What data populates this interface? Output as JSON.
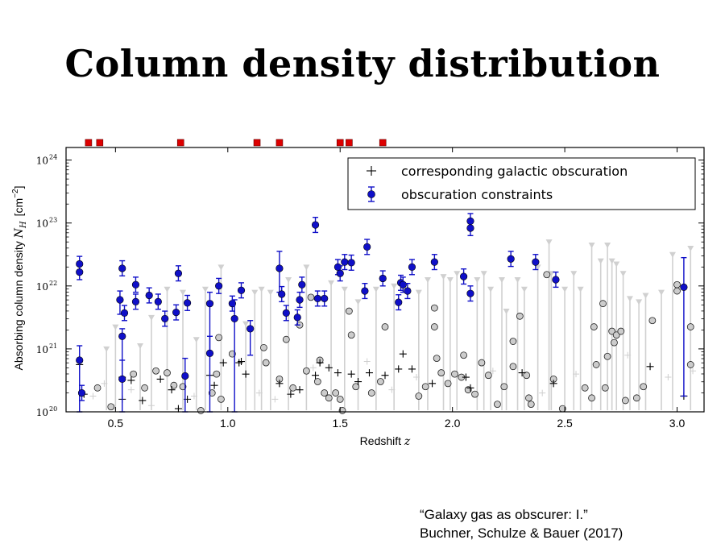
{
  "slide": {
    "title": "Column density distribution",
    "citation_line1": "“Galaxy gas as obscurer: I.”",
    "citation_line2": "Buchner, Schulze & Bauer (2017)"
  },
  "chart_data": {
    "type": "scatter",
    "xlabel": "Redshift",
    "xlabel_symbol": "z",
    "ylabel": "Absorbing column density",
    "ylabel_symbol": "N",
    "ylabel_sub": "H",
    "ylabel_unit": "[cm",
    "ylabel_unit_exp": "−2",
    "ylabel_unit_close": "]",
    "y_scale": "log",
    "xlim": [
      0.28,
      3.12
    ],
    "ylim_log10": [
      20,
      24.2
    ],
    "x_ticks": [
      {
        "v": 0.5,
        "t": "0.5"
      },
      {
        "v": 1.0,
        "t": "1.0"
      },
      {
        "v": 1.5,
        "t": "1.5"
      },
      {
        "v": 2.0,
        "t": "2.0"
      },
      {
        "v": 2.5,
        "t": "2.5"
      },
      {
        "v": 3.0,
        "t": "3.0"
      }
    ],
    "y_ticks": [
      {
        "v": 20,
        "t": "10",
        "e": "20"
      },
      {
        "v": 21,
        "t": "10",
        "e": "21"
      },
      {
        "v": 22,
        "t": "10",
        "e": "22"
      },
      {
        "v": 23,
        "t": "10",
        "e": "23"
      },
      {
        "v": 24,
        "t": "10",
        "e": "24"
      }
    ],
    "legend_position": "top-right",
    "legend": [
      {
        "label": "corresponding galactic obscuration",
        "marker": "plus",
        "color": "#000000"
      },
      {
        "label": "obscuration constraints",
        "marker": "circle-errorbar",
        "color": "#0000cc"
      }
    ],
    "colors": {
      "constraints": "#0f0fc8",
      "galactic": "#000000",
      "upper_limits": "#d0d0d0",
      "open_points": "#cccccc",
      "top_markers": "#dd0000"
    },
    "top_markers": [
      0.38,
      0.43,
      0.79,
      1.13,
      1.23,
      1.5,
      1.54,
      1.69
    ],
    "constraints": [
      {
        "x": 0.34,
        "y": 22.35
      },
      {
        "x": 0.34,
        "y": 22.22
      },
      {
        "x": 0.34,
        "y": 20.82,
        "lo": 20.0,
        "hi": 21.05
      },
      {
        "x": 0.35,
        "y": 20.3
      },
      {
        "x": 0.52,
        "y": 21.78,
        "lo": 21.55,
        "hi": 21.92
      },
      {
        "x": 0.53,
        "y": 22.28
      },
      {
        "x": 0.53,
        "y": 21.2,
        "lo": 20.5,
        "hi": 21.32
      },
      {
        "x": 0.53,
        "y": 20.52,
        "lo": 20.0,
        "hi": 20.82
      },
      {
        "x": 0.54,
        "y": 21.57
      },
      {
        "x": 0.59,
        "y": 22.02
      },
      {
        "x": 0.59,
        "y": 21.75
      },
      {
        "x": 0.65,
        "y": 21.85
      },
      {
        "x": 0.69,
        "y": 21.75
      },
      {
        "x": 0.72,
        "y": 21.48
      },
      {
        "x": 0.77,
        "y": 21.58
      },
      {
        "x": 0.78,
        "y": 22.2
      },
      {
        "x": 0.82,
        "y": 21.73
      },
      {
        "x": 0.81,
        "y": 20.57,
        "lo": 20.0,
        "hi": 20.85
      },
      {
        "x": 0.92,
        "y": 21.72,
        "lo": 20.9,
        "hi": 21.9
      },
      {
        "x": 0.92,
        "y": 20.93,
        "lo": 20.0,
        "hi": 21.2
      },
      {
        "x": 0.96,
        "y": 22.0
      },
      {
        "x": 1.02,
        "y": 21.72
      },
      {
        "x": 1.03,
        "y": 21.48,
        "lo": 20.0,
        "hi": 21.78
      },
      {
        "x": 1.06,
        "y": 21.93
      },
      {
        "x": 1.1,
        "y": 21.32,
        "lo": 20.9,
        "hi": 21.45
      },
      {
        "x": 1.23,
        "y": 22.28,
        "lo": 21.9,
        "hi": 22.55
      },
      {
        "x": 1.24,
        "y": 21.87
      },
      {
        "x": 1.26,
        "y": 21.57
      },
      {
        "x": 1.31,
        "y": 21.5
      },
      {
        "x": 1.32,
        "y": 21.78
      },
      {
        "x": 1.33,
        "y": 22.02
      },
      {
        "x": 1.39,
        "y": 22.97
      },
      {
        "x": 1.4,
        "y": 21.8
      },
      {
        "x": 1.43,
        "y": 21.8
      },
      {
        "x": 1.49,
        "y": 22.3
      },
      {
        "x": 1.5,
        "y": 22.2
      },
      {
        "x": 1.52,
        "y": 22.38
      },
      {
        "x": 1.55,
        "y": 22.37
      },
      {
        "x": 1.62,
        "y": 22.62
      },
      {
        "x": 1.61,
        "y": 21.92
      },
      {
        "x": 1.69,
        "y": 22.12
      },
      {
        "x": 1.76,
        "y": 21.74
      },
      {
        "x": 1.77,
        "y": 22.05
      },
      {
        "x": 1.78,
        "y": 22.02
      },
      {
        "x": 1.8,
        "y": 21.92
      },
      {
        "x": 1.82,
        "y": 22.3
      },
      {
        "x": 1.92,
        "y": 22.38
      },
      {
        "x": 2.05,
        "y": 22.15
      },
      {
        "x": 2.08,
        "y": 23.03
      },
      {
        "x": 2.08,
        "y": 22.92
      },
      {
        "x": 2.08,
        "y": 21.88
      },
      {
        "x": 2.26,
        "y": 22.43
      },
      {
        "x": 2.37,
        "y": 22.38
      },
      {
        "x": 2.46,
        "y": 22.1
      },
      {
        "x": 3.03,
        "y": 21.98,
        "lo": 20.25,
        "hi": 22.45
      }
    ],
    "galactic_points": [
      {
        "x": 0.34,
        "y": 20.75
      },
      {
        "x": 0.36,
        "y": 20.28
      },
      {
        "x": 0.53,
        "y": 20.55
      },
      {
        "x": 0.53,
        "y": 20.2
      },
      {
        "x": 0.57,
        "y": 20.5
      },
      {
        "x": 0.62,
        "y": 20.18
      },
      {
        "x": 0.7,
        "y": 20.52
      },
      {
        "x": 0.75,
        "y": 20.35
      },
      {
        "x": 0.78,
        "y": 20.05
      },
      {
        "x": 0.82,
        "y": 20.2
      },
      {
        "x": 0.92,
        "y": 20.58
      },
      {
        "x": 0.94,
        "y": 20.42
      },
      {
        "x": 0.98,
        "y": 20.78
      },
      {
        "x": 1.05,
        "y": 20.78
      },
      {
        "x": 1.06,
        "y": 20.8
      },
      {
        "x": 1.08,
        "y": 20.6
      },
      {
        "x": 1.23,
        "y": 20.45
      },
      {
        "x": 1.28,
        "y": 20.28
      },
      {
        "x": 1.32,
        "y": 20.35
      },
      {
        "x": 1.39,
        "y": 20.58
      },
      {
        "x": 1.41,
        "y": 20.78
      },
      {
        "x": 1.45,
        "y": 20.7
      },
      {
        "x": 1.49,
        "y": 20.62
      },
      {
        "x": 1.55,
        "y": 20.6
      },
      {
        "x": 1.58,
        "y": 20.48
      },
      {
        "x": 1.63,
        "y": 20.62
      },
      {
        "x": 1.7,
        "y": 20.58
      },
      {
        "x": 1.76,
        "y": 20.68
      },
      {
        "x": 1.78,
        "y": 20.92
      },
      {
        "x": 1.82,
        "y": 20.68
      },
      {
        "x": 1.91,
        "y": 20.45
      },
      {
        "x": 2.06,
        "y": 20.55
      },
      {
        "x": 2.08,
        "y": 20.38
      },
      {
        "x": 2.31,
        "y": 20.62
      },
      {
        "x": 2.45,
        "y": 20.45
      },
      {
        "x": 2.88,
        "y": 20.72
      },
      {
        "x": 3.03,
        "y": 20.25
      }
    ],
    "open_points": [
      {
        "x": 0.42,
        "y": 20.38
      },
      {
        "x": 0.48,
        "y": 20.08
      },
      {
        "x": 0.58,
        "y": 20.6
      },
      {
        "x": 0.63,
        "y": 20.38
      },
      {
        "x": 0.68,
        "y": 20.65
      },
      {
        "x": 0.73,
        "y": 20.62
      },
      {
        "x": 0.76,
        "y": 20.42
      },
      {
        "x": 0.8,
        "y": 20.4
      },
      {
        "x": 0.88,
        "y": 20.02
      },
      {
        "x": 0.93,
        "y": 20.3
      },
      {
        "x": 0.95,
        "y": 20.6
      },
      {
        "x": 0.97,
        "y": 20.2
      },
      {
        "x": 0.96,
        "y": 21.18
      },
      {
        "x": 1.02,
        "y": 20.92
      },
      {
        "x": 1.16,
        "y": 21.02
      },
      {
        "x": 1.17,
        "y": 20.78
      },
      {
        "x": 1.23,
        "y": 20.52
      },
      {
        "x": 1.26,
        "y": 21.15
      },
      {
        "x": 1.29,
        "y": 20.38
      },
      {
        "x": 1.32,
        "y": 21.38
      },
      {
        "x": 1.35,
        "y": 20.65
      },
      {
        "x": 1.37,
        "y": 21.82
      },
      {
        "x": 1.4,
        "y": 20.48
      },
      {
        "x": 1.41,
        "y": 20.82
      },
      {
        "x": 1.43,
        "y": 20.3
      },
      {
        "x": 1.45,
        "y": 20.22
      },
      {
        "x": 1.48,
        "y": 20.3
      },
      {
        "x": 1.5,
        "y": 20.2
      },
      {
        "x": 1.51,
        "y": 20.02
      },
      {
        "x": 1.54,
        "y": 21.6
      },
      {
        "x": 1.55,
        "y": 21.22
      },
      {
        "x": 1.57,
        "y": 20.4
      },
      {
        "x": 1.64,
        "y": 20.3
      },
      {
        "x": 1.68,
        "y": 20.48
      },
      {
        "x": 1.7,
        "y": 21.35
      },
      {
        "x": 1.85,
        "y": 20.25
      },
      {
        "x": 1.88,
        "y": 20.4
      },
      {
        "x": 1.92,
        "y": 21.35
      },
      {
        "x": 1.92,
        "y": 21.65
      },
      {
        "x": 1.93,
        "y": 20.85
      },
      {
        "x": 1.95,
        "y": 20.62
      },
      {
        "x": 1.98,
        "y": 20.45
      },
      {
        "x": 2.01,
        "y": 20.6
      },
      {
        "x": 2.04,
        "y": 20.55
      },
      {
        "x": 2.05,
        "y": 20.9
      },
      {
        "x": 2.07,
        "y": 20.35
      },
      {
        "x": 2.1,
        "y": 20.28
      },
      {
        "x": 2.13,
        "y": 20.78
      },
      {
        "x": 2.16,
        "y": 20.58
      },
      {
        "x": 2.2,
        "y": 20.12
      },
      {
        "x": 2.23,
        "y": 20.4
      },
      {
        "x": 2.27,
        "y": 21.12
      },
      {
        "x": 2.27,
        "y": 20.72
      },
      {
        "x": 2.3,
        "y": 21.52
      },
      {
        "x": 2.33,
        "y": 20.58
      },
      {
        "x": 2.34,
        "y": 20.22
      },
      {
        "x": 2.35,
        "y": 20.12
      },
      {
        "x": 2.42,
        "y": 22.18
      },
      {
        "x": 2.45,
        "y": 20.52
      },
      {
        "x": 2.49,
        "y": 20.05
      },
      {
        "x": 2.59,
        "y": 20.38
      },
      {
        "x": 2.62,
        "y": 20.22
      },
      {
        "x": 2.63,
        "y": 21.35
      },
      {
        "x": 2.64,
        "y": 20.75
      },
      {
        "x": 2.67,
        "y": 21.72
      },
      {
        "x": 2.68,
        "y": 20.38
      },
      {
        "x": 2.69,
        "y": 20.88
      },
      {
        "x": 2.71,
        "y": 21.28
      },
      {
        "x": 2.72,
        "y": 21.1
      },
      {
        "x": 2.73,
        "y": 21.22
      },
      {
        "x": 2.75,
        "y": 21.28
      },
      {
        "x": 2.77,
        "y": 20.18
      },
      {
        "x": 2.82,
        "y": 20.22
      },
      {
        "x": 2.85,
        "y": 20.4
      },
      {
        "x": 2.89,
        "y": 21.45
      },
      {
        "x": 3.0,
        "y": 22.02
      },
      {
        "x": 3.0,
        "y": 21.92
      },
      {
        "x": 3.06,
        "y": 21.35
      },
      {
        "x": 3.06,
        "y": 20.75
      }
    ],
    "upper_limits": [
      {
        "x": 0.46,
        "y": 21.0
      },
      {
        "x": 0.5,
        "y": 21.35
      },
      {
        "x": 0.61,
        "y": 21.05
      },
      {
        "x": 0.66,
        "y": 21.5
      },
      {
        "x": 0.73,
        "y": 21.95
      },
      {
        "x": 0.8,
        "y": 21.9
      },
      {
        "x": 0.86,
        "y": 21.15
      },
      {
        "x": 0.9,
        "y": 21.95
      },
      {
        "x": 0.97,
        "y": 22.3
      },
      {
        "x": 1.08,
        "y": 21.4
      },
      {
        "x": 1.12,
        "y": 21.9
      },
      {
        "x": 1.15,
        "y": 21.95
      },
      {
        "x": 1.19,
        "y": 21.9
      },
      {
        "x": 1.27,
        "y": 22.1
      },
      {
        "x": 1.35,
        "y": 22.3
      },
      {
        "x": 1.46,
        "y": 22.05
      },
      {
        "x": 1.52,
        "y": 21.95
      },
      {
        "x": 1.58,
        "y": 21.75
      },
      {
        "x": 1.66,
        "y": 21.95
      },
      {
        "x": 1.74,
        "y": 22.0
      },
      {
        "x": 1.85,
        "y": 21.9
      },
      {
        "x": 1.89,
        "y": 22.1
      },
      {
        "x": 1.96,
        "y": 22.15
      },
      {
        "x": 1.99,
        "y": 22.1
      },
      {
        "x": 2.02,
        "y": 22.2
      },
      {
        "x": 2.11,
        "y": 22.1
      },
      {
        "x": 2.14,
        "y": 22.2
      },
      {
        "x": 2.17,
        "y": 21.95
      },
      {
        "x": 2.22,
        "y": 22.1
      },
      {
        "x": 2.24,
        "y": 21.6
      },
      {
        "x": 2.29,
        "y": 22.1
      },
      {
        "x": 2.32,
        "y": 21.95
      },
      {
        "x": 2.38,
        "y": 22.3
      },
      {
        "x": 2.43,
        "y": 22.7
      },
      {
        "x": 2.44,
        "y": 22.2
      },
      {
        "x": 2.5,
        "y": 21.95
      },
      {
        "x": 2.54,
        "y": 22.2
      },
      {
        "x": 2.57,
        "y": 21.95
      },
      {
        "x": 2.62,
        "y": 22.65
      },
      {
        "x": 2.66,
        "y": 22.4
      },
      {
        "x": 2.69,
        "y": 22.65
      },
      {
        "x": 2.71,
        "y": 22.4
      },
      {
        "x": 2.73,
        "y": 22.35
      },
      {
        "x": 2.76,
        "y": 22.2
      },
      {
        "x": 2.79,
        "y": 21.8
      },
      {
        "x": 2.83,
        "y": 21.75
      },
      {
        "x": 2.86,
        "y": 21.85
      },
      {
        "x": 2.93,
        "y": 21.9
      },
      {
        "x": 2.98,
        "y": 22.5
      },
      {
        "x": 3.06,
        "y": 22.6
      }
    ],
    "faint_points": [
      {
        "x": 0.4,
        "y": 20.25
      },
      {
        "x": 0.45,
        "y": 20.45
      },
      {
        "x": 0.57,
        "y": 20.35
      },
      {
        "x": 0.66,
        "y": 20.1
      },
      {
        "x": 0.85,
        "y": 20.25
      },
      {
        "x": 1.14,
        "y": 20.3
      },
      {
        "x": 1.21,
        "y": 20.2
      },
      {
        "x": 1.38,
        "y": 20.7
      },
      {
        "x": 1.62,
        "y": 20.8
      },
      {
        "x": 1.73,
        "y": 20.35
      },
      {
        "x": 1.84,
        "y": 20.55
      },
      {
        "x": 2.18,
        "y": 20.65
      },
      {
        "x": 2.4,
        "y": 20.3
      },
      {
        "x": 2.55,
        "y": 20.6
      },
      {
        "x": 2.78,
        "y": 20.9
      },
      {
        "x": 2.96,
        "y": 20.55
      },
      {
        "x": 3.07,
        "y": 20.65
      }
    ]
  }
}
